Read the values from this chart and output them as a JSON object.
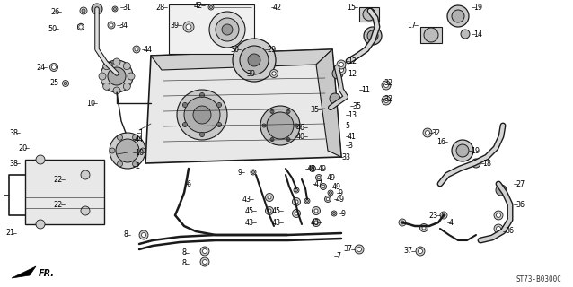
{
  "fig_width": 6.38,
  "fig_height": 3.2,
  "dpi": 100,
  "background_color": "#ffffff",
  "line_color": "#1a1a1a",
  "text_color": "#000000",
  "footer_text": "ST73-B0300C",
  "label_fontsize": 5.8,
  "footer_fontsize": 5.5
}
